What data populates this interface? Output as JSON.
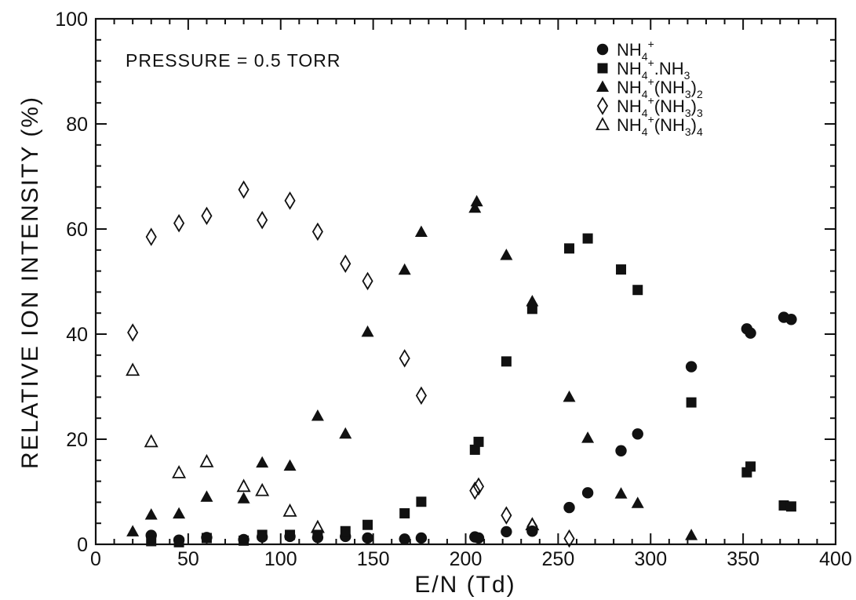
{
  "chart_data": {
    "type": "scatter",
    "title": "",
    "annotation": "PRESSURE = 0.5 TORR",
    "xlabel": "E/N (Td)",
    "ylabel": "RELATIVE ION INTENSITY (%)",
    "xlim": [
      0,
      400
    ],
    "ylim": [
      0,
      100
    ],
    "xticks": [
      0,
      50,
      100,
      150,
      200,
      250,
      300,
      350,
      400
    ],
    "yticks": [
      0,
      20,
      40,
      60,
      80,
      100
    ],
    "grid": false,
    "legend_position": "top-right",
    "series": [
      {
        "name": "NH4+",
        "legend": {
          "base": "NH",
          "sub1": "4",
          "sup": "+",
          "rest": ""
        },
        "marker": "filled-circle",
        "x": [
          30,
          45,
          60,
          80,
          90,
          105,
          120,
          135,
          147,
          167,
          176,
          205,
          207,
          222,
          236,
          256,
          266,
          284,
          293,
          322,
          352,
          354,
          372,
          376
        ],
        "y": [
          1.7,
          0.8,
          1.3,
          0.9,
          1.4,
          1.5,
          1.3,
          1.5,
          1.2,
          1.0,
          1.2,
          1.4,
          1.2,
          2.4,
          2.5,
          7.0,
          9.8,
          17.8,
          21.0,
          33.8,
          41.0,
          40.2,
          43.2,
          42.8
        ]
      },
      {
        "name": "NH4+.NH3",
        "legend": {
          "base": "NH",
          "sub1": "4",
          "sup": "+",
          "rest": ".NH",
          "sub2": "3"
        },
        "marker": "filled-square",
        "x": [
          30,
          45,
          60,
          80,
          90,
          105,
          120,
          135,
          147,
          167,
          176,
          205,
          207,
          222,
          236,
          256,
          266,
          284,
          293,
          322,
          352,
          354,
          372,
          376
        ],
        "y": [
          0.6,
          0.4,
          1.2,
          0.7,
          1.8,
          1.8,
          1.8,
          2.5,
          3.7,
          5.9,
          8.1,
          18.0,
          19.5,
          34.8,
          44.8,
          56.3,
          58.2,
          52.3,
          48.4,
          27.0,
          13.7,
          14.8,
          7.4,
          7.2
        ]
      },
      {
        "name": "NH4+(NH3)2",
        "legend": {
          "base": "NH",
          "sub1": "4",
          "sup": "+",
          "rest": "(NH",
          "sub2": "3",
          "rest2": ")",
          "sub3": "2"
        },
        "marker": "filled-triangle",
        "x": [
          20,
          30,
          45,
          60,
          80,
          90,
          105,
          120,
          135,
          147,
          167,
          176,
          205,
          206,
          222,
          236,
          256,
          266,
          284,
          293,
          322
        ],
        "y": [
          2.4,
          5.6,
          5.8,
          9.0,
          8.7,
          15.5,
          14.9,
          24.4,
          21.0,
          40.4,
          52.2,
          59.4,
          64.0,
          65.2,
          55.0,
          46.2,
          28.0,
          20.2,
          9.6,
          7.8,
          1.7
        ]
      },
      {
        "name": "NH4+(NH3)3",
        "legend": {
          "base": "NH",
          "sub1": "4",
          "sup": "+",
          "rest": "(NH",
          "sub2": "3",
          "rest2": ")",
          "sub3": "3"
        },
        "marker": "open-diamond",
        "x": [
          20,
          30,
          45,
          60,
          80,
          90,
          105,
          120,
          135,
          147,
          167,
          176,
          205,
          207,
          222,
          236,
          256
        ],
        "y": [
          40.3,
          58.5,
          61.1,
          62.5,
          67.5,
          61.7,
          65.4,
          59.5,
          53.4,
          50.1,
          35.4,
          28.3,
          10.2,
          11.0,
          5.5,
          3.4,
          1.1
        ]
      },
      {
        "name": "NH4+(NH3)4",
        "legend": {
          "base": "NH",
          "sub1": "4",
          "sup": "+",
          "rest": "(NH",
          "sub2": "3",
          "rest2": ")",
          "sub3": "4"
        },
        "marker": "open-triangle",
        "x": [
          20,
          30,
          45,
          60,
          80,
          90,
          105,
          120,
          236
        ],
        "y": [
          33.1,
          19.5,
          13.6,
          15.7,
          11.0,
          10.2,
          6.3,
          3.2,
          3.7
        ]
      }
    ]
  },
  "colors": {
    "ink": "#111111",
    "background": "#ffffff"
  }
}
